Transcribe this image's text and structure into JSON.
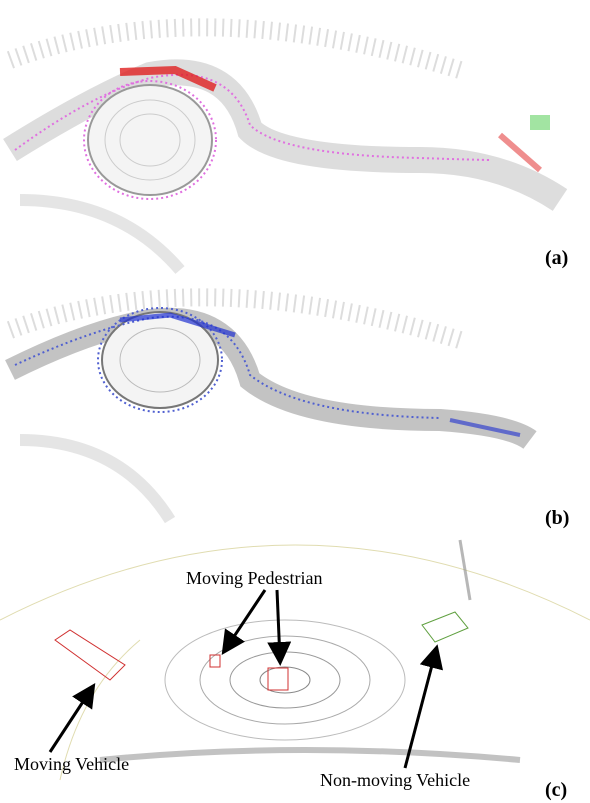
{
  "panels": [
    {
      "label": "(a)"
    },
    {
      "label": "(b)"
    },
    {
      "label": "(c)",
      "annotations": {
        "pedestrian": "Moving Pedestrian",
        "vehicle": "Moving Vehicle",
        "static_vehicle": "Non-moving Vehicle"
      }
    }
  ]
}
